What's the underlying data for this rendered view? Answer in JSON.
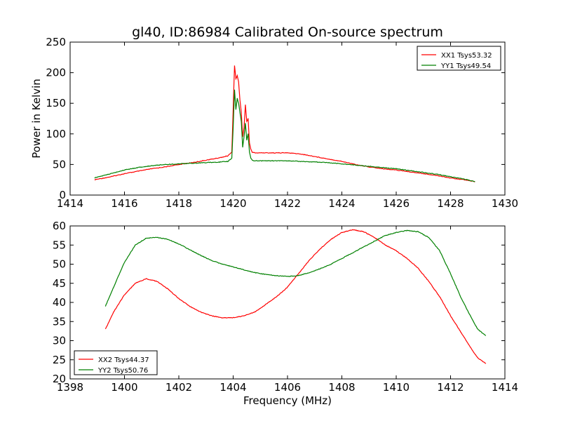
{
  "chart_data": [
    {
      "type": "line",
      "title": "gl40, ID:86984 Calibrated On-source spectrum",
      "xlabel": "",
      "ylabel": "Power in Kelvin",
      "xlim": [
        1414,
        1430
      ],
      "ylim": [
        0,
        250
      ],
      "xticks": [
        "1414",
        "1416",
        "1418",
        "1420",
        "1422",
        "1424",
        "1426",
        "1428",
        "1430"
      ],
      "yticks": [
        "0",
        "50",
        "100",
        "150",
        "200",
        "250"
      ],
      "grid": false,
      "legend_position": "top-right",
      "series": [
        {
          "name": "XX1 Tsys53.32",
          "color": "#ff0000",
          "x": [
            1414.9,
            1415.5,
            1416.0,
            1416.5,
            1417.0,
            1417.5,
            1418.0,
            1418.5,
            1419.0,
            1419.5,
            1419.8,
            1419.95,
            1420.0,
            1420.05,
            1420.1,
            1420.15,
            1420.2,
            1420.25,
            1420.3,
            1420.35,
            1420.4,
            1420.45,
            1420.5,
            1420.55,
            1420.6,
            1420.65,
            1420.7,
            1420.8,
            1421.0,
            1421.5,
            1422.0,
            1422.5,
            1423.0,
            1423.5,
            1424.0,
            1424.5,
            1425.0,
            1425.5,
            1426.0,
            1426.5,
            1427.0,
            1427.5,
            1428.0,
            1428.5,
            1428.9
          ],
          "values": [
            25,
            30,
            35,
            39,
            43,
            46,
            50,
            53,
            57,
            61,
            64,
            70,
            140,
            212,
            190,
            195,
            185,
            155,
            135,
            95,
            110,
            148,
            120,
            125,
            85,
            75,
            70,
            69,
            69,
            69,
            69,
            67,
            63,
            59,
            55,
            50,
            46,
            43,
            41,
            38,
            35,
            32,
            28,
            25,
            22
          ]
        },
        {
          "name": "YY1 Tsys49.54",
          "color": "#008000",
          "x": [
            1414.9,
            1415.5,
            1416.0,
            1416.5,
            1417.0,
            1417.5,
            1418.0,
            1418.5,
            1419.0,
            1419.5,
            1419.8,
            1419.95,
            1420.0,
            1420.05,
            1420.1,
            1420.15,
            1420.2,
            1420.25,
            1420.3,
            1420.35,
            1420.4,
            1420.45,
            1420.5,
            1420.55,
            1420.6,
            1420.65,
            1420.7,
            1420.8,
            1421.0,
            1421.5,
            1422.0,
            1422.5,
            1423.0,
            1423.5,
            1424.0,
            1424.5,
            1425.0,
            1425.5,
            1426.0,
            1426.5,
            1427.0,
            1427.5,
            1428.0,
            1428.5,
            1428.9
          ],
          "values": [
            28,
            35,
            41,
            45,
            48,
            50,
            51,
            52,
            53,
            54,
            55,
            60,
            110,
            172,
            140,
            158,
            150,
            135,
            120,
            78,
            95,
            118,
            90,
            100,
            70,
            60,
            57,
            56,
            56,
            56,
            56,
            55,
            54,
            53,
            51,
            49,
            47,
            45,
            43,
            40,
            37,
            34,
            30,
            26,
            22
          ]
        }
      ]
    },
    {
      "type": "line",
      "title": "",
      "xlabel": "Frequency (MHz)",
      "ylabel": "",
      "xlim": [
        1398,
        1414
      ],
      "ylim": [
        20,
        60
      ],
      "xticks": [
        "1398",
        "1400",
        "1402",
        "1404",
        "1406",
        "1408",
        "1410",
        "1412",
        "1414"
      ],
      "yticks": [
        "20",
        "25",
        "30",
        "35",
        "40",
        "45",
        "50",
        "55",
        "60"
      ],
      "grid": false,
      "legend_position": "bottom-left",
      "series": [
        {
          "name": "XX2 Tsys44.37",
          "color": "#ff0000",
          "x": [
            1399.3,
            1399.6,
            1400.0,
            1400.4,
            1400.8,
            1401.2,
            1401.6,
            1402.0,
            1402.4,
            1402.8,
            1403.2,
            1403.6,
            1404.0,
            1404.4,
            1404.8,
            1405.2,
            1405.6,
            1406.0,
            1406.4,
            1406.8,
            1407.2,
            1407.6,
            1408.0,
            1408.4,
            1408.8,
            1409.2,
            1409.6,
            1410.0,
            1410.4,
            1410.8,
            1411.2,
            1411.6,
            1412.0,
            1412.4,
            1412.8,
            1413.0,
            1413.3
          ],
          "values": [
            33,
            37.5,
            42,
            45,
            46.2,
            45.5,
            43.5,
            41,
            39,
            37.5,
            36.5,
            36,
            36,
            36.5,
            37.5,
            39.5,
            41.5,
            44,
            47.5,
            51,
            54,
            56.5,
            58.3,
            59,
            58.5,
            57,
            55,
            53.5,
            51.5,
            49,
            45.5,
            41.5,
            36.5,
            32,
            27.5,
            25.5,
            24
          ]
        },
        {
          "name": "YY2 Tsys50.76",
          "color": "#008000",
          "x": [
            1399.3,
            1399.6,
            1400.0,
            1400.4,
            1400.8,
            1401.2,
            1401.6,
            1402.0,
            1402.4,
            1402.8,
            1403.2,
            1403.6,
            1404.0,
            1404.4,
            1404.8,
            1405.2,
            1405.6,
            1406.0,
            1406.4,
            1406.8,
            1407.2,
            1407.6,
            1408.0,
            1408.4,
            1408.8,
            1409.2,
            1409.6,
            1410.0,
            1410.4,
            1410.8,
            1411.2,
            1411.6,
            1412.0,
            1412.4,
            1412.8,
            1413.0,
            1413.3
          ],
          "values": [
            39,
            44,
            50.5,
            55,
            56.8,
            57,
            56.5,
            55.3,
            53.8,
            52.3,
            51,
            50,
            49.3,
            48.5,
            47.8,
            47.3,
            47,
            46.8,
            47,
            47.8,
            48.8,
            50,
            51.5,
            53,
            54.5,
            56,
            57.5,
            58.3,
            58.8,
            58.5,
            57,
            53.5,
            47.5,
            41,
            35.5,
            33,
            31.3
          ]
        }
      ]
    }
  ]
}
